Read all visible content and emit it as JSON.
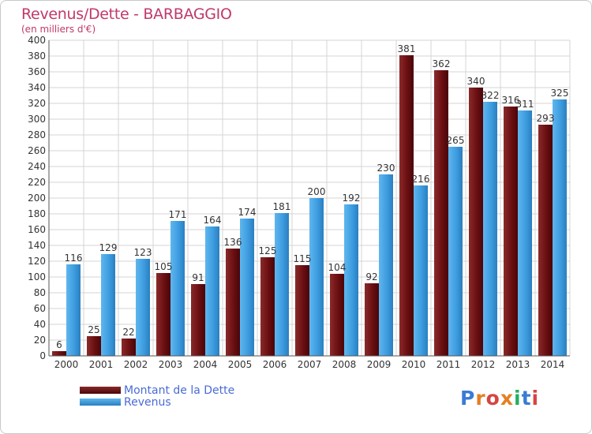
{
  "title": "Revenus/Dette - BARBAGGIO",
  "subtitle": "(en milliers d'€)",
  "logo": {
    "text": "Proxiti",
    "colors": [
      "#3a7bd5",
      "#e67e22",
      "#d64541",
      "#e67e22",
      "#27ae60",
      "#3a7bd5",
      "#d64541"
    ]
  },
  "chart_data": {
    "type": "bar",
    "categories": [
      "2000",
      "2001",
      "2002",
      "2003",
      "2004",
      "2005",
      "2006",
      "2007",
      "2008",
      "2009",
      "2010",
      "2011",
      "2012",
      "2013",
      "2014"
    ],
    "series": [
      {
        "name": "Montant de la Dette",
        "color": "#6b0f12",
        "values": [
          6,
          25,
          22,
          105,
          91,
          136,
          125,
          115,
          104,
          92,
          381,
          362,
          340,
          316,
          293
        ]
      },
      {
        "name": "Revenus",
        "color": "#3e9de0",
        "values": [
          116,
          129,
          123,
          171,
          164,
          174,
          181,
          200,
          192,
          230,
          216,
          265,
          322,
          311,
          325
        ]
      }
    ],
    "ylim": [
      0,
      400
    ],
    "yticks": [
      "0",
      "20",
      "40",
      "60",
      "80",
      "100",
      "120",
      "140",
      "160",
      "180",
      "200",
      "220",
      "240",
      "260",
      "280",
      "300",
      "320",
      "340",
      "360",
      "380",
      "400"
    ],
    "grid": true,
    "legend_position": "bottom-left"
  }
}
